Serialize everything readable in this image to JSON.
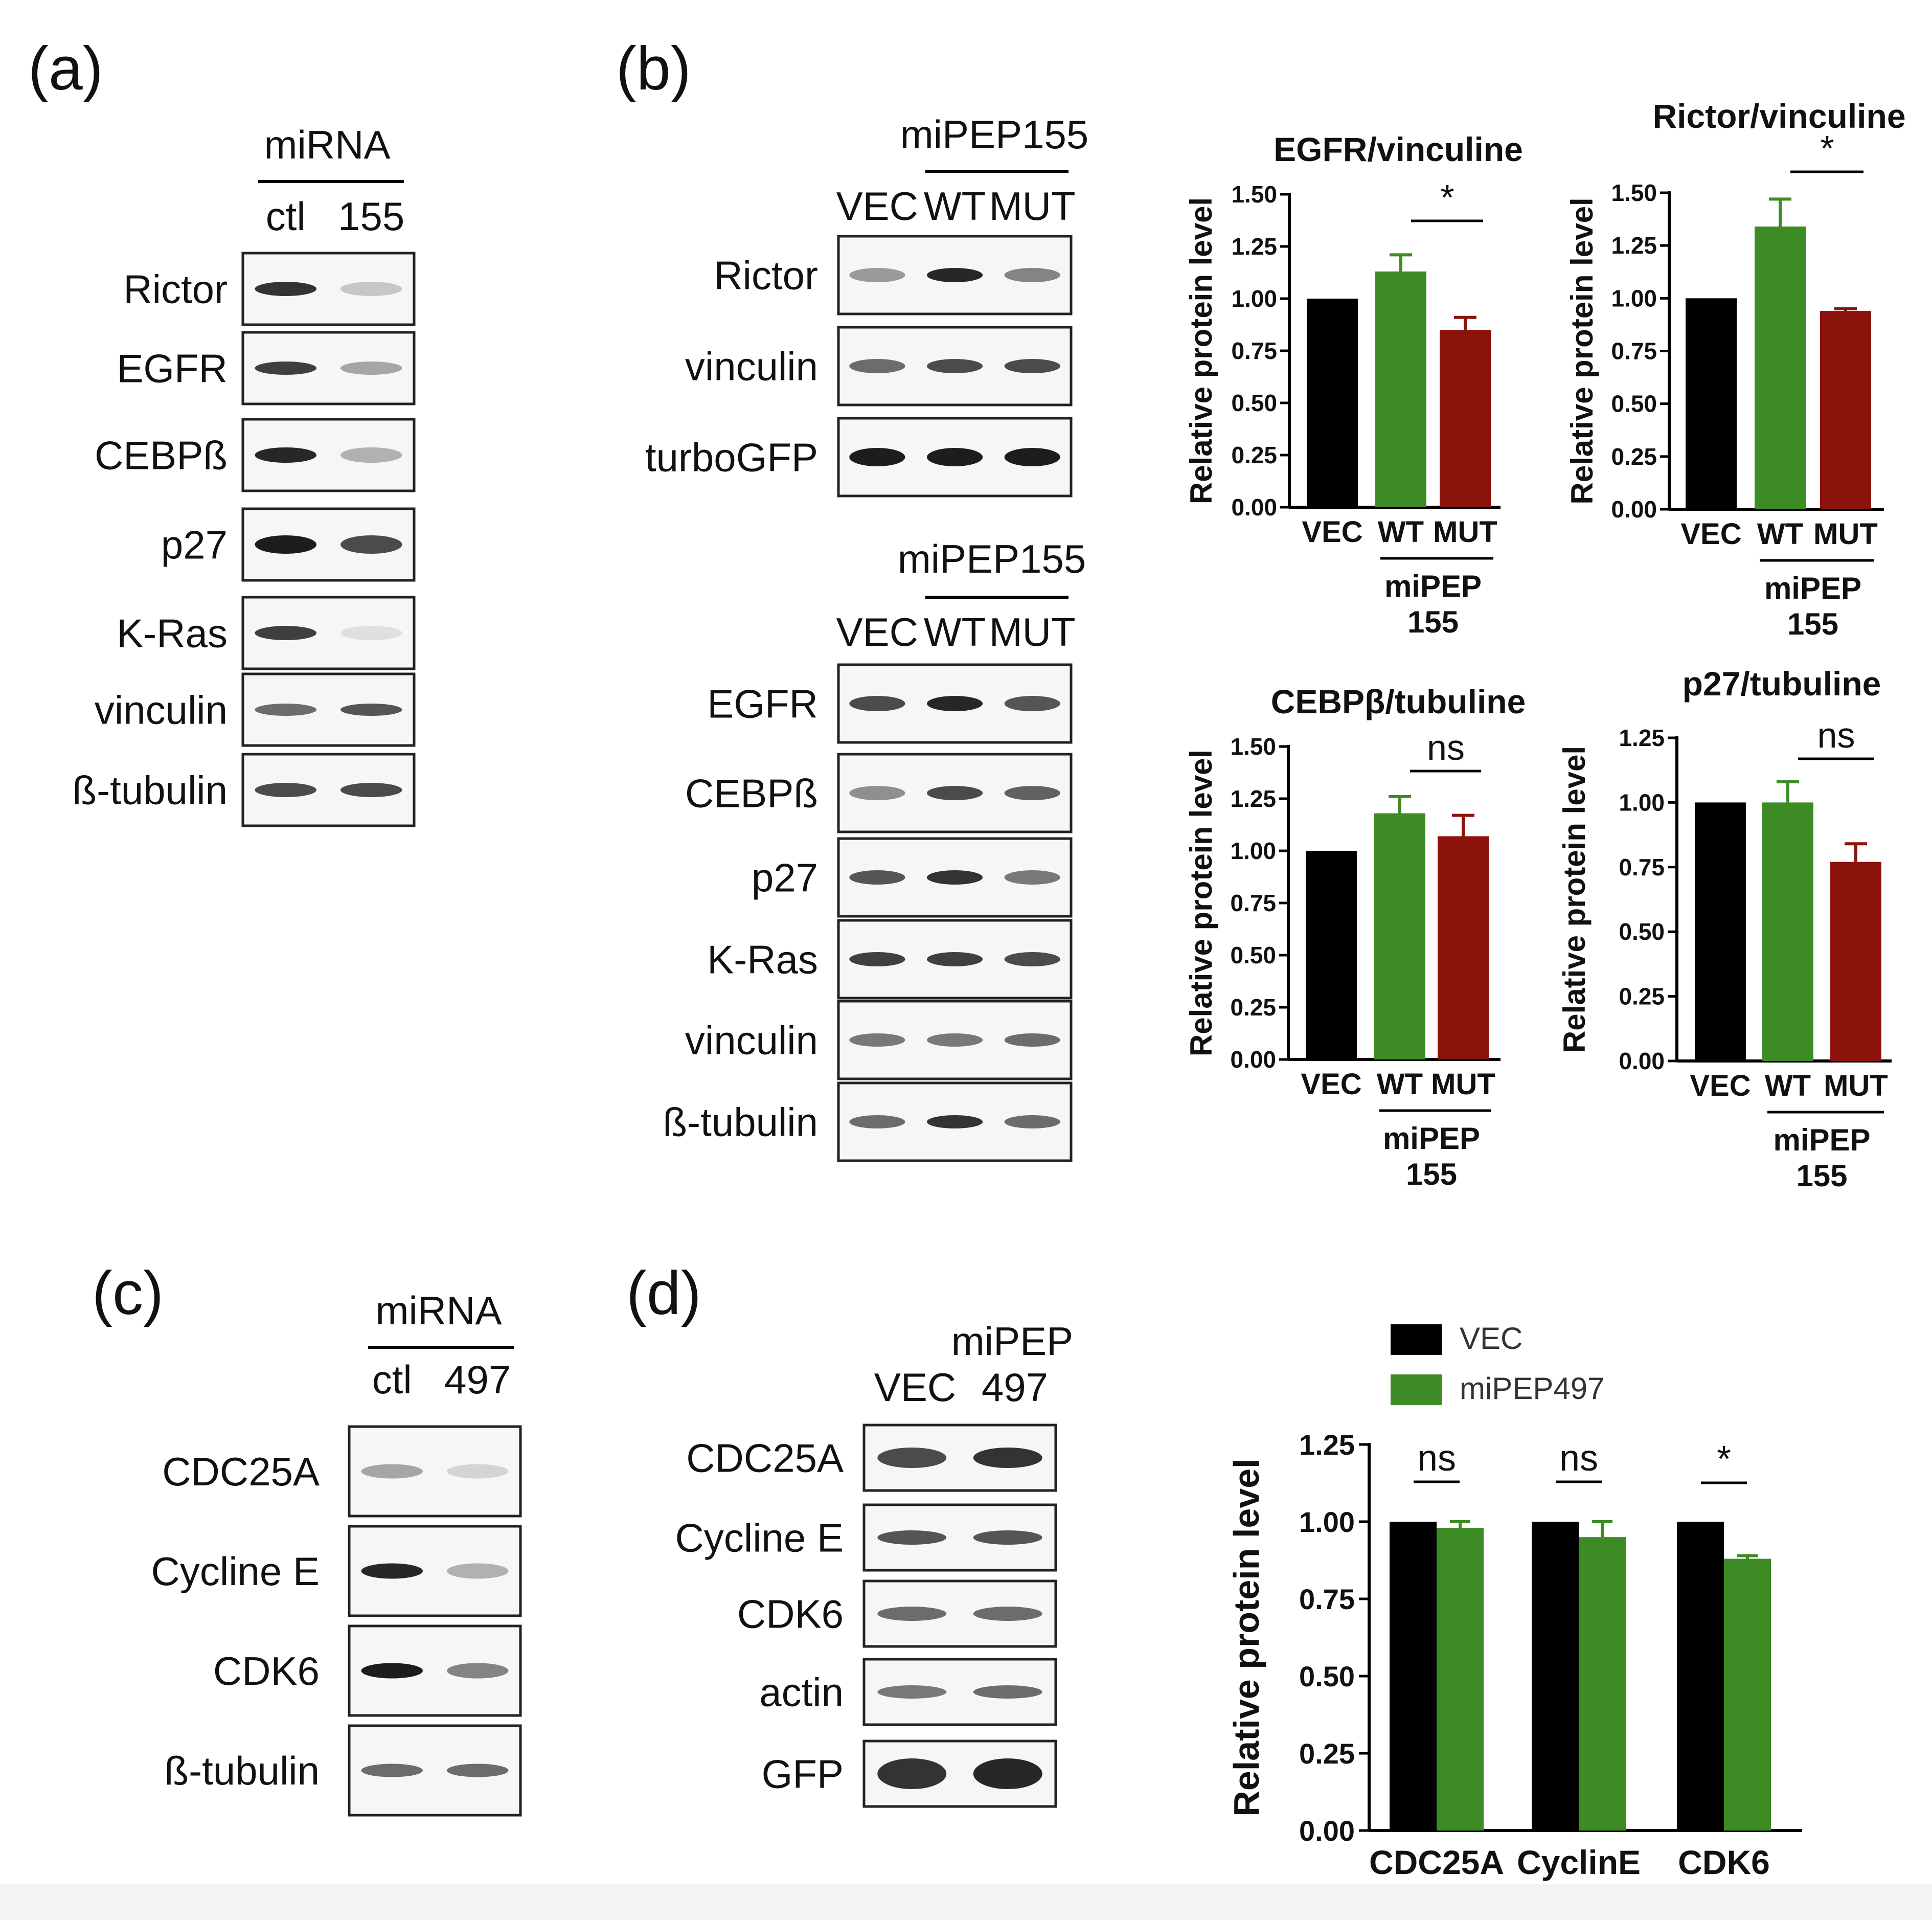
{
  "panel_labels": {
    "a": "(a)",
    "b": "(b)",
    "c": "(c)",
    "d": "(d)"
  },
  "blot_a": {
    "group_header": "miRNA",
    "lanes": [
      "ctl",
      "155"
    ],
    "rows": [
      "Rictor",
      "EGFR",
      "CEBPß",
      "p27",
      "K-Ras",
      "vinculin",
      "ß-tubulin"
    ]
  },
  "blot_b_top": {
    "group_header": "miPEP155",
    "lanes": [
      "VEC",
      "WT",
      "MUT"
    ],
    "rows": [
      "Rictor",
      "vinculin",
      "turboGFP"
    ]
  },
  "blot_b_bottom": {
    "group_header": "miPEP155",
    "lanes": [
      "VEC",
      "WT",
      "MUT"
    ],
    "rows": [
      "EGFR",
      "CEBPß",
      "p27",
      "K-Ras",
      "vinculin",
      "ß-tubulin"
    ]
  },
  "blot_c": {
    "group_header": "miRNA",
    "lanes": [
      "ctl",
      "497"
    ],
    "rows": [
      "CDC25A",
      "Cycline E",
      "CDK6",
      "ß-tubulin"
    ]
  },
  "blot_d": {
    "group_header": "miPEP",
    "lanes": [
      "VEC",
      "497"
    ],
    "rows": [
      "CDC25A",
      "Cycline E",
      "CDK6",
      "actin",
      "GFP"
    ]
  },
  "colors": {
    "VEC": "#000000",
    "WT": "#3d8b25",
    "MUT": "#8b130c",
    "miPEP497": "#3d8b25"
  },
  "chart_data": [
    {
      "type": "bar",
      "title": "EGFR/vinculine",
      "ylabel": "Relative protein level",
      "ylim": [
        0,
        1.5
      ],
      "yticks": [
        "0.00",
        "0.25",
        "0.50",
        "0.75",
        "1.00",
        "1.25",
        "1.50"
      ],
      "categories": [
        "VEC",
        "WT",
        "MUT"
      ],
      "values": [
        1.0,
        1.13,
        0.85
      ],
      "errors": [
        0,
        0.08,
        0.06
      ],
      "group_label": [
        "miPEP",
        "155"
      ],
      "significance": [
        {
          "between": [
            "WT",
            "MUT"
          ],
          "label": "*"
        }
      ]
    },
    {
      "type": "bar",
      "title": "Rictor/vinculine",
      "ylabel": "Relative protein level",
      "ylim": [
        0,
        1.5
      ],
      "yticks": [
        "0.00",
        "0.25",
        "0.50",
        "0.75",
        "1.00",
        "1.25",
        "1.50"
      ],
      "categories": [
        "VEC",
        "WT",
        "MUT"
      ],
      "values": [
        1.0,
        1.34,
        0.94
      ],
      "errors": [
        0,
        0.13,
        0.01
      ],
      "group_label": [
        "miPEP",
        "155"
      ],
      "significance": [
        {
          "between": [
            "WT",
            "MUT"
          ],
          "label": "*"
        }
      ]
    },
    {
      "type": "bar",
      "title": "CEBPβ/tubuline",
      "ylabel": "Relative protein level",
      "ylim": [
        0,
        1.5
      ],
      "yticks": [
        "0.00",
        "0.25",
        "0.50",
        "0.75",
        "1.00",
        "1.25",
        "1.50"
      ],
      "categories": [
        "VEC",
        "WT",
        "MUT"
      ],
      "values": [
        1.0,
        1.18,
        1.07
      ],
      "errors": [
        0,
        0.08,
        0.1
      ],
      "group_label": [
        "miPEP",
        "155"
      ],
      "significance": [
        {
          "between": [
            "WT",
            "MUT"
          ],
          "label": "ns"
        }
      ]
    },
    {
      "type": "bar",
      "title": "p27/tubuline",
      "ylabel": "Relative protein level",
      "ylim": [
        0,
        1.25
      ],
      "yticks": [
        "0.00",
        "0.25",
        "0.50",
        "0.75",
        "1.00",
        "1.25"
      ],
      "categories": [
        "VEC",
        "WT",
        "MUT"
      ],
      "values": [
        1.0,
        1.0,
        0.77
      ],
      "errors": [
        0,
        0.08,
        0.07
      ],
      "group_label": [
        "miPEP",
        "155"
      ],
      "significance": [
        {
          "between": [
            "WT",
            "MUT"
          ],
          "label": "ns"
        }
      ]
    },
    {
      "type": "bar",
      "title": "",
      "ylabel": "Relative protein level",
      "ylim": [
        0,
        1.25
      ],
      "yticks": [
        "0.00",
        "0.25",
        "0.50",
        "0.75",
        "1.00",
        "1.25"
      ],
      "categories": [
        "CDC25A",
        "CyclinE",
        "CDK6"
      ],
      "series": [
        {
          "name": "VEC",
          "values": [
            1.0,
            1.0,
            1.0
          ],
          "errors": [
            0,
            0,
            0
          ]
        },
        {
          "name": "miPEP497",
          "values": [
            0.98,
            0.95,
            0.88
          ],
          "errors": [
            0.02,
            0.05,
            0.01
          ]
        }
      ],
      "legend_position": "top",
      "significance": [
        {
          "category": "CDC25A",
          "label": "ns"
        },
        {
          "category": "CyclinE",
          "label": "ns"
        },
        {
          "category": "CDK6",
          "label": "*"
        }
      ]
    }
  ]
}
